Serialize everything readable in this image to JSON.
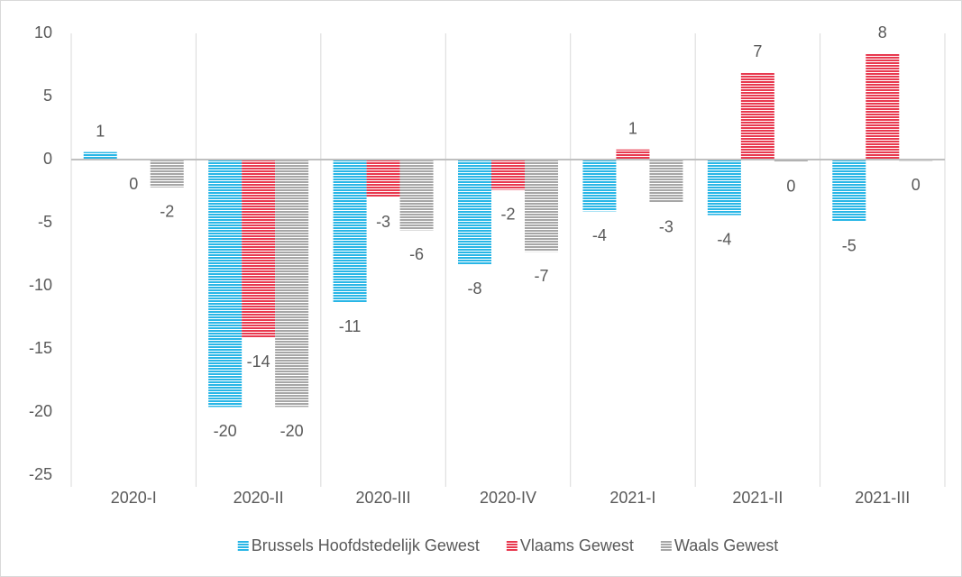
{
  "chart_data": {
    "type": "bar",
    "categories": [
      "2020-I",
      "2020-II",
      "2020-III",
      "2020-IV",
      "2021-I",
      "2021-II",
      "2021-III"
    ],
    "series": [
      {
        "name": "Brussels Hoofdstedelijk Gewest",
        "color": "#29b6e6",
        "values": [
          0.6,
          -19.6,
          -11.3,
          -8.3,
          -4.1,
          -4.4,
          -4.9
        ],
        "value_labels": [
          "1",
          "-20",
          "-11",
          "-8",
          "-4",
          "-4",
          "-5"
        ]
      },
      {
        "name": "Vlaams Gewest",
        "color": "#e8394f",
        "values": [
          0,
          -14.1,
          -3.0,
          -2.4,
          0.8,
          6.9,
          8.4
        ],
        "value_labels": [
          "0",
          "-14",
          "-3",
          "-2",
          "1",
          "7",
          "8"
        ]
      },
      {
        "name": "Waals Gewest",
        "color": "#a6a6a6",
        "values": [
          -2.2,
          -19.6,
          -5.6,
          -7.3,
          -3.4,
          -0.2,
          -0.1
        ],
        "value_labels": [
          "-2",
          "-20",
          "-6",
          "-7",
          "-3",
          "0",
          "0"
        ]
      }
    ],
    "ylim": [
      -25,
      10
    ],
    "yticks": [
      -25,
      -20,
      -15,
      -10,
      -5,
      0,
      5,
      10
    ],
    "grid": false,
    "legend": "bottom"
  }
}
